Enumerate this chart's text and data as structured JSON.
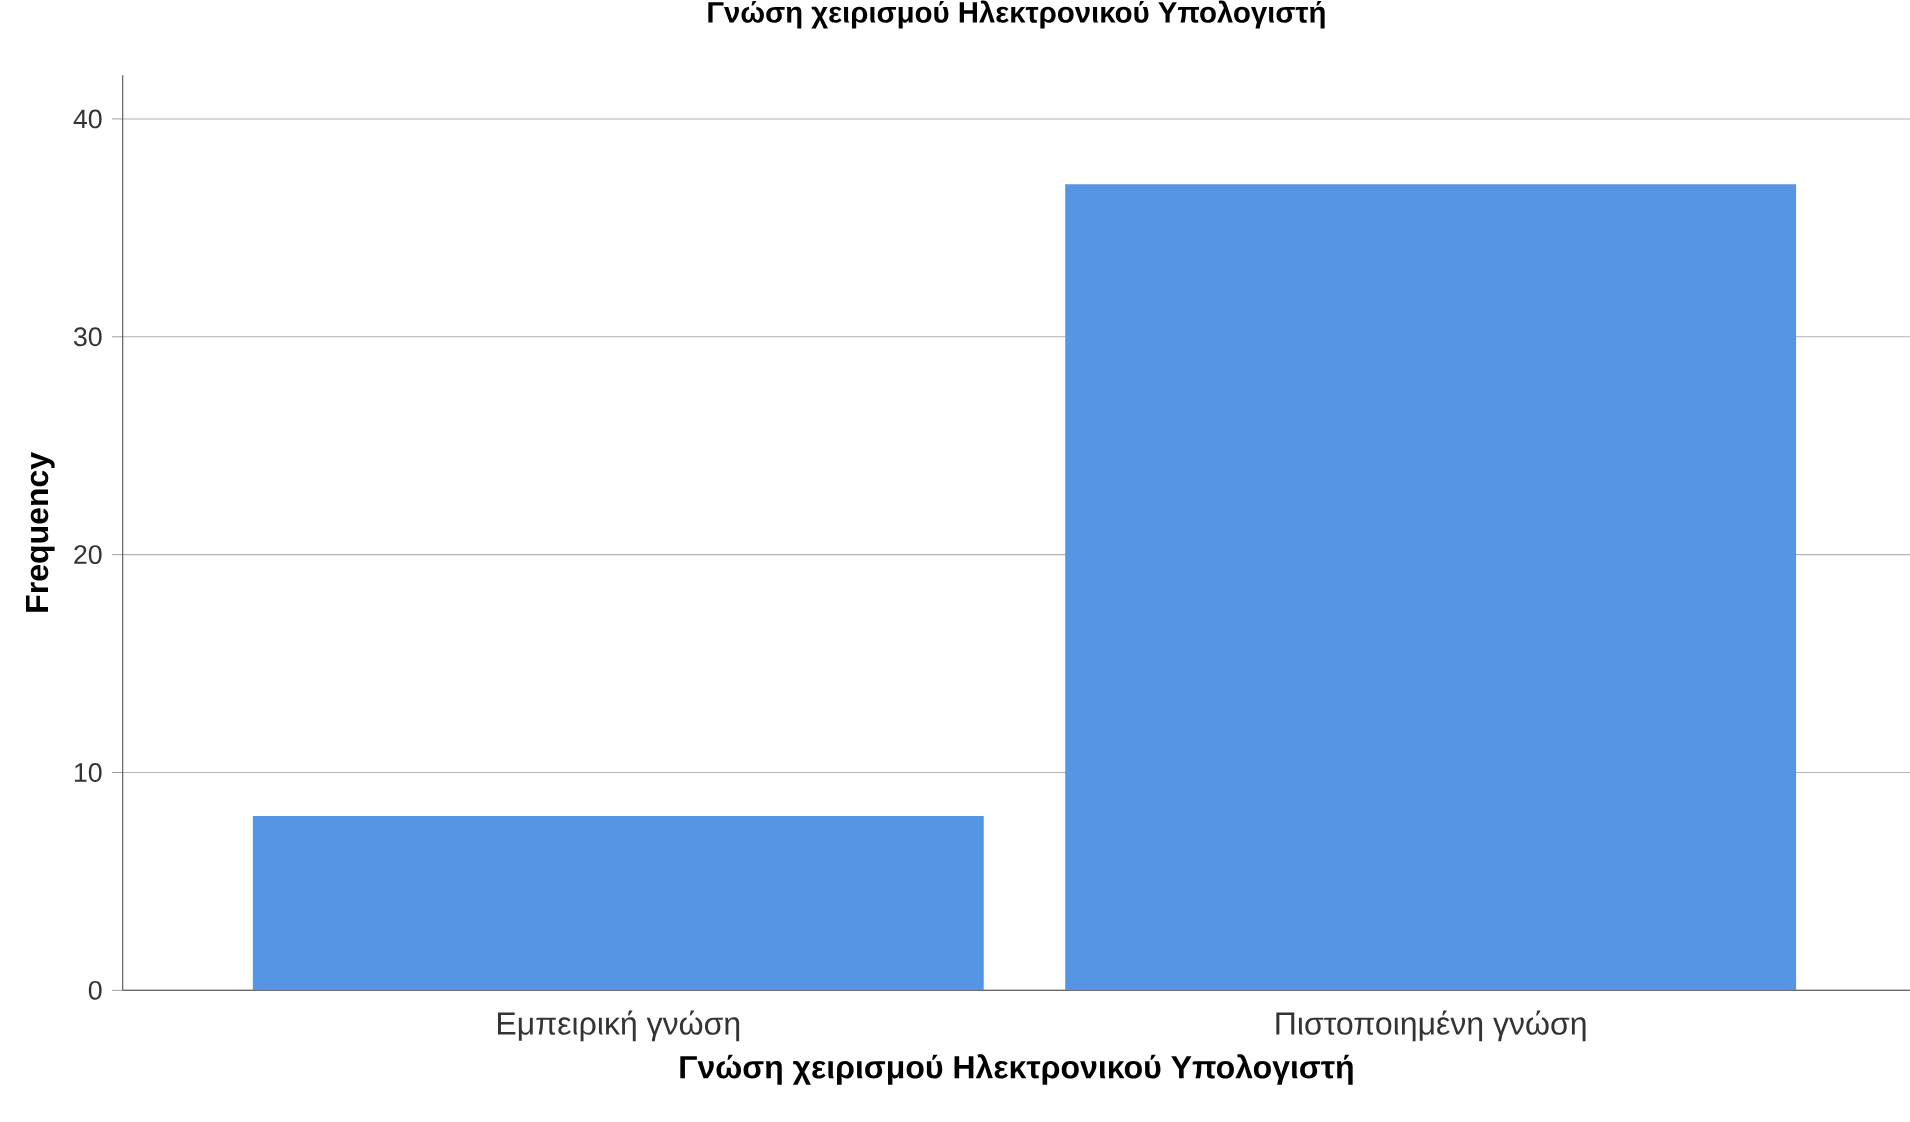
{
  "chart_data": {
    "type": "bar",
    "title": "Γνώση χειρισμού Ηλεκτρονικού Υπολογιστή",
    "xlabel": "Γνώση χειρισμού Ηλεκτρονικού Υπολογιστή",
    "ylabel": "Frequency",
    "categories": [
      "Εμπειρική γνώση",
      "Πιστοποιημένη γνώση"
    ],
    "values": [
      8,
      37
    ],
    "color": "#5595e3",
    "ylim": [
      0,
      42
    ],
    "yticks": [
      0,
      10,
      20,
      30,
      40
    ],
    "grid": "y"
  }
}
